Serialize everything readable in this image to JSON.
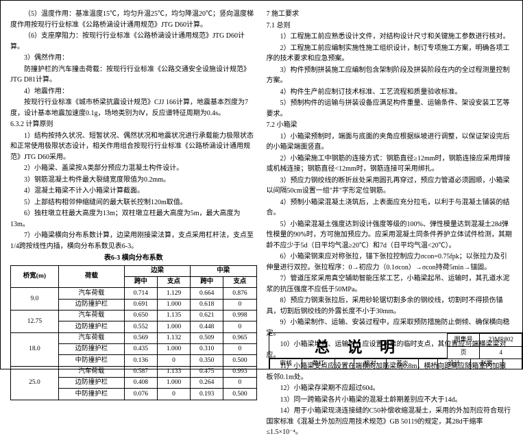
{
  "left": {
    "paras": [
      "（5）温度作用：基准温度15℃，均匀升温25℃，均匀降温20℃；竖向温度梯度作用按现行行业标准《公路桥涵设计通用规范》JTG D60计算。",
      "（6）支座摩阻力：按现行行业标准《公路桥涵设计通用规范》JTG D60计算。",
      "3）偶然作用：",
      "防撞护栏的汽车撞击荷载：按现行行业标准《公路交通安全设施设计规范》JTG D81计算。",
      "4）地震作用：",
      "按现行行业标准《城市桥梁抗震设计规范》CJJ 166计算，地震基本烈度为7度，设计基本地震加速度0.1g，场地类别为Ⅳ，反应谱特征周期为0.4s。"
    ],
    "secA": "6.3.2 计算原则",
    "secA_items": [
      "1）结构按持久状况、短暂状况、偶然状况和地震状况进行承载能力极限状态和正常使用极限状态设计，相关作用组合按现行行业标准《公路桥涵设计通用规范》JTG D60采用。",
      "2）小箱梁、盖梁按A类部分预应力混凝土构件设计。",
      "3）钢筋混凝土构件最大裂缝宽度限值为0.2mm。",
      "4）混凝土箱梁不计入小箱梁计算截面。",
      "5）上部结构相邻伸缩缝间的最大联长控制120m取值。",
      "6）独柱墩立柱最大高度为13m；双柱墩立柱最大高度为5m，最大高度为13m。",
      "7）小箱梁横向分布系数计算，边梁用刚接梁法算，支点采用杠杆法，支点至1/4跨按线性内插，横向分布系数见表6-3。"
    ],
    "table_title": "表6-3  横向分布系数",
    "table": {
      "head1": [
        "桥宽(m)",
        "荷载",
        "边梁",
        "",
        "中梁",
        ""
      ],
      "head2": [
        "",
        "",
        "跨中",
        "支点",
        "跨中",
        "支点"
      ],
      "rows": [
        [
          "9.0",
          "汽车荷载",
          "0.714",
          "1.129",
          "0.664",
          "0.876"
        ],
        [
          "",
          "边防撞护栏",
          "0.691",
          "1.000",
          "0.618",
          "0"
        ],
        [
          "12.75",
          "汽车荷载",
          "0.650",
          "1.135",
          "0.621",
          "0.998"
        ],
        [
          "",
          "边防撞护栏",
          "0.552",
          "1.000",
          "0.448",
          "0"
        ],
        [
          "18.0",
          "汽车荷载",
          "0.569",
          "1.132",
          "0.509",
          "0.965"
        ],
        [
          "",
          "边防撞护栏",
          "0.435",
          "1.000",
          "0.310",
          "0"
        ],
        [
          "",
          "中防撞护栏",
          "0.136",
          "0",
          "0.350",
          "0.500"
        ],
        [
          "25.0",
          "汽车荷载",
          "0.587",
          "1.133",
          "0.475",
          "0.993"
        ],
        [
          "",
          "边防撞护栏",
          "0.408",
          "1.000",
          "0.264",
          "0"
        ],
        [
          "",
          "中防撞护栏",
          "0.076",
          "0",
          "0.193",
          "0.500"
        ]
      ]
    }
  },
  "right": {
    "h7": "7  施工要求",
    "h71": "7.1 总则",
    "p71": [
      "1）工程施工前应熟悉设计文件，对结构设计尺寸和关键施工参数进行核对。",
      "2）工程施工前应编制实施性施工组织设计，制订专项施工方案，明确各项工序的技术要求和应急预案。",
      "3）构件预制拼装施工应编制包含架制阶段及拼装阶段在内的全过程测量控制方案。",
      "4）构件生产前应制订技术标准、工艺流程和质量验收标准。",
      "5）预制构件的运输与拼装设备应满足构件重量、运输条件、架设安装工艺等要求。"
    ],
    "h72": "7.2 小箱梁",
    "p72": [
      "1）小箱梁预制时，端面与底面的夹角应根据纵坡进行调整，以保证架设完后的小箱梁端面竖直。",
      "2）小箱梁施工中钢筋的连接方式：钢筋直径≥12mm时，钢筋连接应采用焊接或机械连接；钢筋直径<12mm时，钢筋连接可采用绑扎。",
      "3）预应力钢绞线的断折丝处采用圆孔再穿过，预应力管道必须圆顺，小箱梁以间隔50cm设置一组\"井\"字形定位钢筋。",
      "4）预制小箱梁混凝土浇筑后，上表面应充分拉毛，以利于与混凝土铺装的结合。",
      "5）小箱梁混凝土强度达到设计强度等级的100%、弹性模量达到混凝土28d弹性模量的90%时，方可施加预应力。应采用混凝土同条件养护立体试件检测，其期龄不应少于5d（日平均气温≥20℃）和7d（日平均气温<20℃）。",
      "6）小箱梁钢束应对称张拉，锚下张拉控制应力σcon=0.75fpk；以张拉力及引伸量进行双控。张拉程序：0→初应力（0.1σcon）→σcon持荷5min→锚固。",
      "7）管道压浆采用真空辅助智能压浆工艺，小箱梁起吊、运输时，其孔道水泥浆的抗压强度不应低于50MPa。",
      "8）预应力钢束张拉后，采用砂轮锯切割多余的钢绞线，切割时不得损伤锚具，切割后钢绞线的外露长度不小于30mm。",
      "9）小箱梁制作、运输、安装过程中，应采取预防措施防止倒倾、确保横向稳定。",
      "10）小箱梁堆放、运输时，应设置可靠的临时支点，其位置应与端横梁梁对应。",
      "11）小箱梁支点应设置在端横向加筋梁端0.8m，横桥向距离应随箱室内加腋板邻0.1m处。",
      "12）小箱梁存梁期不应超过60d。",
      "13）同一跨箱梁各片小箱梁的混凝土龄期差别应不大于14d。",
      "14）用于小箱梁现浇连接缝的C50补偿收缩混凝土，采用的外加剂应符合现行国家标准《混凝土外加剂应用技术规范》GB 50119的规定，其28d干缩率≤1.5×10⁻⁴。"
    ]
  },
  "title": "总  说  明",
  "meta": {
    "shenhe_l": "审核",
    "shenhe": "黄红",
    "jiaohe_l": "校对",
    "jiaohe": "苏炎",
    "shiji_l": "设计",
    "shiji": "李伟",
    "sheji_l": "设计",
    "sheji": "赵鹏",
    "tuji_l": "图集号",
    "tuji": "23MR802",
    "page_l": "页",
    "page": "4"
  }
}
